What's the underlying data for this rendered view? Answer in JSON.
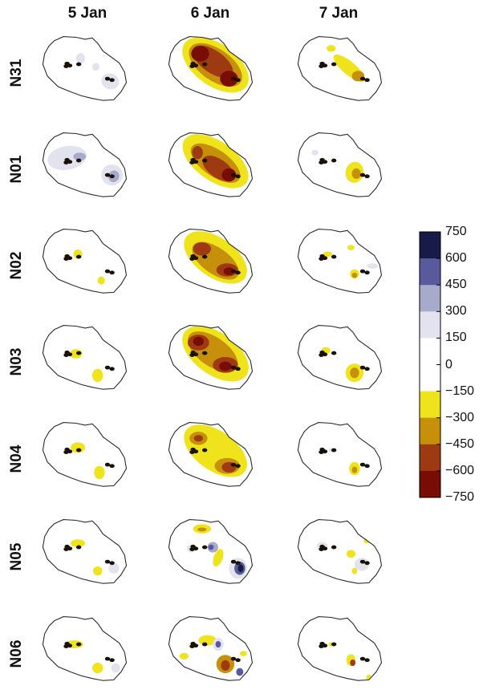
{
  "chart_data": {
    "type": "heatmap",
    "columns": [
      "5 Jan",
      "6 Jan",
      "7 Jan"
    ],
    "rows": [
      "N31",
      "N01",
      "N02",
      "N03",
      "N04",
      "N05",
      "N06"
    ],
    "colorbar": {
      "ticks": [
        "750",
        "600",
        "450",
        "300",
        "150",
        "0",
        "−150",
        "−300",
        "−450",
        "−600",
        "−750"
      ],
      "range": [
        -750,
        750
      ],
      "colors": [
        "#181a48",
        "#595a9e",
        "#a8aacc",
        "#e3e3ef",
        "#ffffff",
        "#ffffff",
        "#efe31b",
        "#c6900a",
        "#9e3a12",
        "#7a0c06"
      ]
    }
  }
}
